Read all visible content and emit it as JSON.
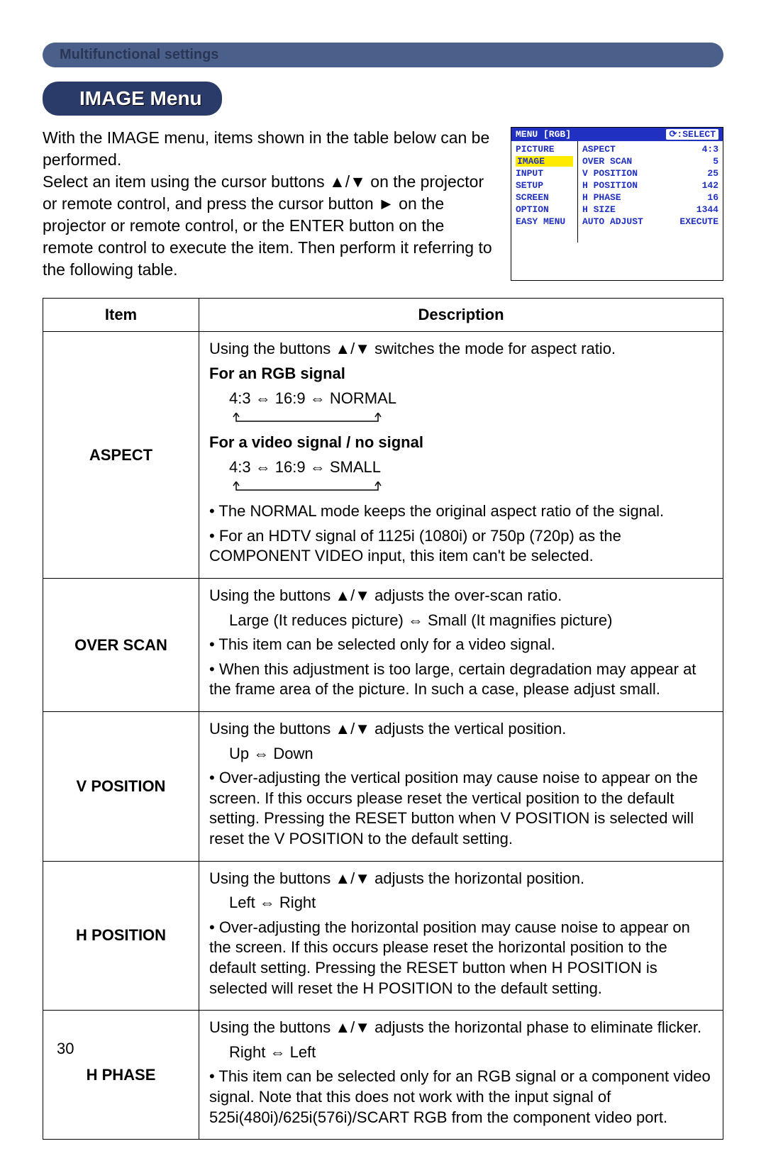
{
  "section_header": "Multifunctional settings",
  "title": "IMAGE Menu",
  "intro": "With the IMAGE menu, items shown in the table below can be performed.\nSelect an item using the cursor buttons ▲/▼ on the projector or remote control, and press the cursor button ► on the projector or remote control, or the ENTER button on the remote control to execute the item. Then perform it referring to the following table.",
  "osd": {
    "header_left": "MENU [RGB]",
    "header_right_icon": "⟳",
    "header_right_label": ":SELECT",
    "left_items": [
      "PICTURE",
      "IMAGE",
      "INPUT",
      "SETUP",
      "SCREEN",
      "OPTION",
      "EASY MENU"
    ],
    "highlight_index": 1,
    "right_rows": [
      {
        "label": "ASPECT",
        "value": "4:3"
      },
      {
        "label": "OVER SCAN",
        "value": "5"
      },
      {
        "label": "V POSITION",
        "value": "25"
      },
      {
        "label": "H POSITION",
        "value": "142"
      },
      {
        "label": "H PHASE",
        "value": "16"
      },
      {
        "label": "H SIZE",
        "value": "1344"
      },
      {
        "label": "AUTO ADJUST",
        "value": "EXECUTE"
      }
    ]
  },
  "table": {
    "headers": [
      "Item",
      "Description"
    ],
    "rows": [
      {
        "item": "ASPECT",
        "lines": [
          {
            "t": "Using the buttons ▲/▼ switches the mode for aspect ratio."
          },
          {
            "t": "For an RGB signal",
            "bold": true
          },
          {
            "t": "4:3 ⇔ 16:9 ⇔ NORMAL",
            "sub": true
          },
          {
            "t": "loop",
            "arrow": true
          },
          {
            "t": "For a video signal / no signal",
            "bold": true
          },
          {
            "t": "4:3 ⇔ 16:9 ⇔ SMALL",
            "sub": true
          },
          {
            "t": "loop",
            "arrow": true
          },
          {
            "t": "• The NORMAL mode keeps the original aspect ratio of the signal."
          },
          {
            "t": "• For an HDTV signal of 1125i (1080i) or 750p (720p) as the COMPONENT VIDEO input, this item can't be selected."
          }
        ]
      },
      {
        "item": "OVER SCAN",
        "lines": [
          {
            "t": "Using the buttons ▲/▼ adjusts the over-scan ratio."
          },
          {
            "t": "Large (It reduces picture) ⇔ Small (It magnifies picture)",
            "sub": true
          },
          {
            "t": "• This item can be selected only for a video signal."
          },
          {
            "t": "• When this adjustment is too large, certain degradation may appear at the frame area of the picture. In such a case, please adjust small."
          }
        ]
      },
      {
        "item": "V POSITION",
        "lines": [
          {
            "t": "Using the buttons ▲/▼ adjusts the vertical position."
          },
          {
            "t": "Up ⇔ Down",
            "sub": true
          },
          {
            "t": "• Over-adjusting the vertical position may cause noise to appear on the screen. If this occurs please reset the vertical position to the default setting. Pressing the RESET button when V POSITION is selected will reset the V POSITION to the default setting."
          }
        ]
      },
      {
        "item": "H POSITION",
        "lines": [
          {
            "t": "Using the buttons ▲/▼ adjusts the horizontal position."
          },
          {
            "t": "Left ⇔ Right",
            "sub": true
          },
          {
            "t": "• Over-adjusting the horizontal position may cause noise to appear on the screen. If this occurs please reset the horizontal position to the default setting. Pressing the RESET button when H POSITION is selected will reset the H POSITION to the default setting."
          }
        ]
      },
      {
        "item": "H PHASE",
        "lines": [
          {
            "t": "Using the buttons ▲/▼ adjusts the horizontal phase to eliminate flicker."
          },
          {
            "t": "Right ⇔ Left",
            "sub": true
          },
          {
            "t": "• This item can be selected only for an RGB signal or a component video signal. Note that this does not work with the input signal of 525i(480i)/625i(576i)/SCART RGB from the component video port."
          }
        ]
      }
    ]
  },
  "page_number": "30",
  "colors": {
    "tab_bg": "#4a5f8a",
    "tab_text": "#2a3656",
    "chip_bg": "#2a3b6a",
    "osd_blue": "#2030c0",
    "osd_highlight": "#ffea00"
  }
}
